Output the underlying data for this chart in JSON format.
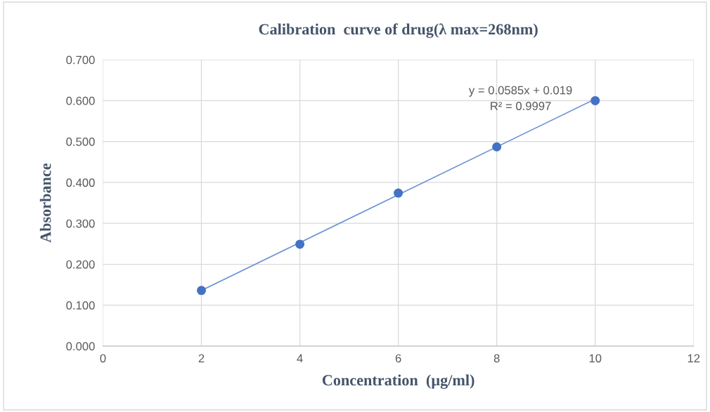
{
  "chart_data": {
    "type": "scatter",
    "title": "Calibration  curve of drug(λ max=268nm)",
    "xlabel": "Concentration  (µg/ml)",
    "ylabel": "Absorbance",
    "x": [
      2,
      4,
      6,
      8,
      10
    ],
    "series": [
      {
        "color": "#4472c4",
        "values": [
          0.136,
          0.249,
          0.374,
          0.487,
          0.6
        ],
        "marker": "circle"
      },
      {
        "type": "line",
        "color": "#6f95d6",
        "x": [
          2,
          10
        ],
        "values": [
          0.136,
          0.604
        ],
        "marker": "none"
      }
    ],
    "annotations": [
      "y = 0.0585x + 0.019",
      "R² = 0.9997"
    ],
    "xlim": [
      0,
      12
    ],
    "xticks": [
      0,
      2,
      4,
      6,
      8,
      10,
      12
    ],
    "ylim": [
      0,
      0.7
    ],
    "yticks": [
      {
        "value": 0,
        "label": "0.000"
      },
      {
        "value": 0.1,
        "label": "0.100"
      },
      {
        "value": 0.2,
        "label": "0.200"
      },
      {
        "value": 0.3,
        "label": "0.300"
      },
      {
        "value": 0.4,
        "label": "0.400"
      },
      {
        "value": 0.5,
        "label": "0.500"
      },
      {
        "value": 0.6,
        "label": "0.600"
      },
      {
        "value": 0.7,
        "label": "0.700"
      }
    ],
    "grid": true,
    "legend": false
  }
}
